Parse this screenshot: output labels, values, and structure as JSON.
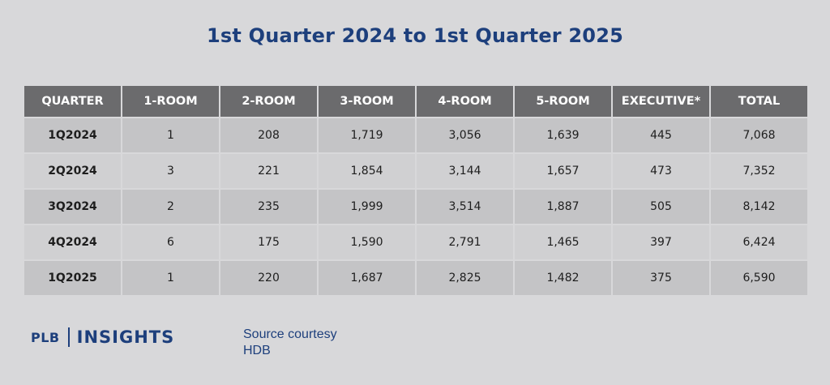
{
  "chart_data": {
    "type": "table",
    "title": "1st Quarter 2024 to 1st Quarter 2025",
    "columns": [
      "QUARTER",
      "1-ROOM",
      "2-ROOM",
      "3-ROOM",
      "4-ROOM",
      "5-ROOM",
      "EXECUTIVE*",
      "TOTAL"
    ],
    "rows": [
      [
        "1Q2024",
        "1",
        "208",
        "1,719",
        "3,056",
        "1,639",
        "445",
        "7,068"
      ],
      [
        "2Q2024",
        "3",
        "221",
        "1,854",
        "3,144",
        "1,657",
        "473",
        "7,352"
      ],
      [
        "3Q2024",
        "2",
        "235",
        "1,999",
        "3,514",
        "1,887",
        "505",
        "8,142"
      ],
      [
        "4Q2024",
        "6",
        "175",
        "1,590",
        "2,791",
        "1,465",
        "397",
        "6,424"
      ],
      [
        "1Q2025",
        "1",
        "220",
        "1,687",
        "2,825",
        "1,482",
        "375",
        "6,590"
      ]
    ]
  },
  "logo": {
    "plb": "PLB",
    "insights": "INSIGHTS"
  },
  "source": {
    "line1": "Source courtesy",
    "line2": "HDB"
  },
  "colors": {
    "title": "#1d3f7c",
    "header_bg": "#6b6b6d",
    "row_odd": "#c4c4c6",
    "row_even": "#d0d0d2",
    "background": "#d8d8da"
  }
}
